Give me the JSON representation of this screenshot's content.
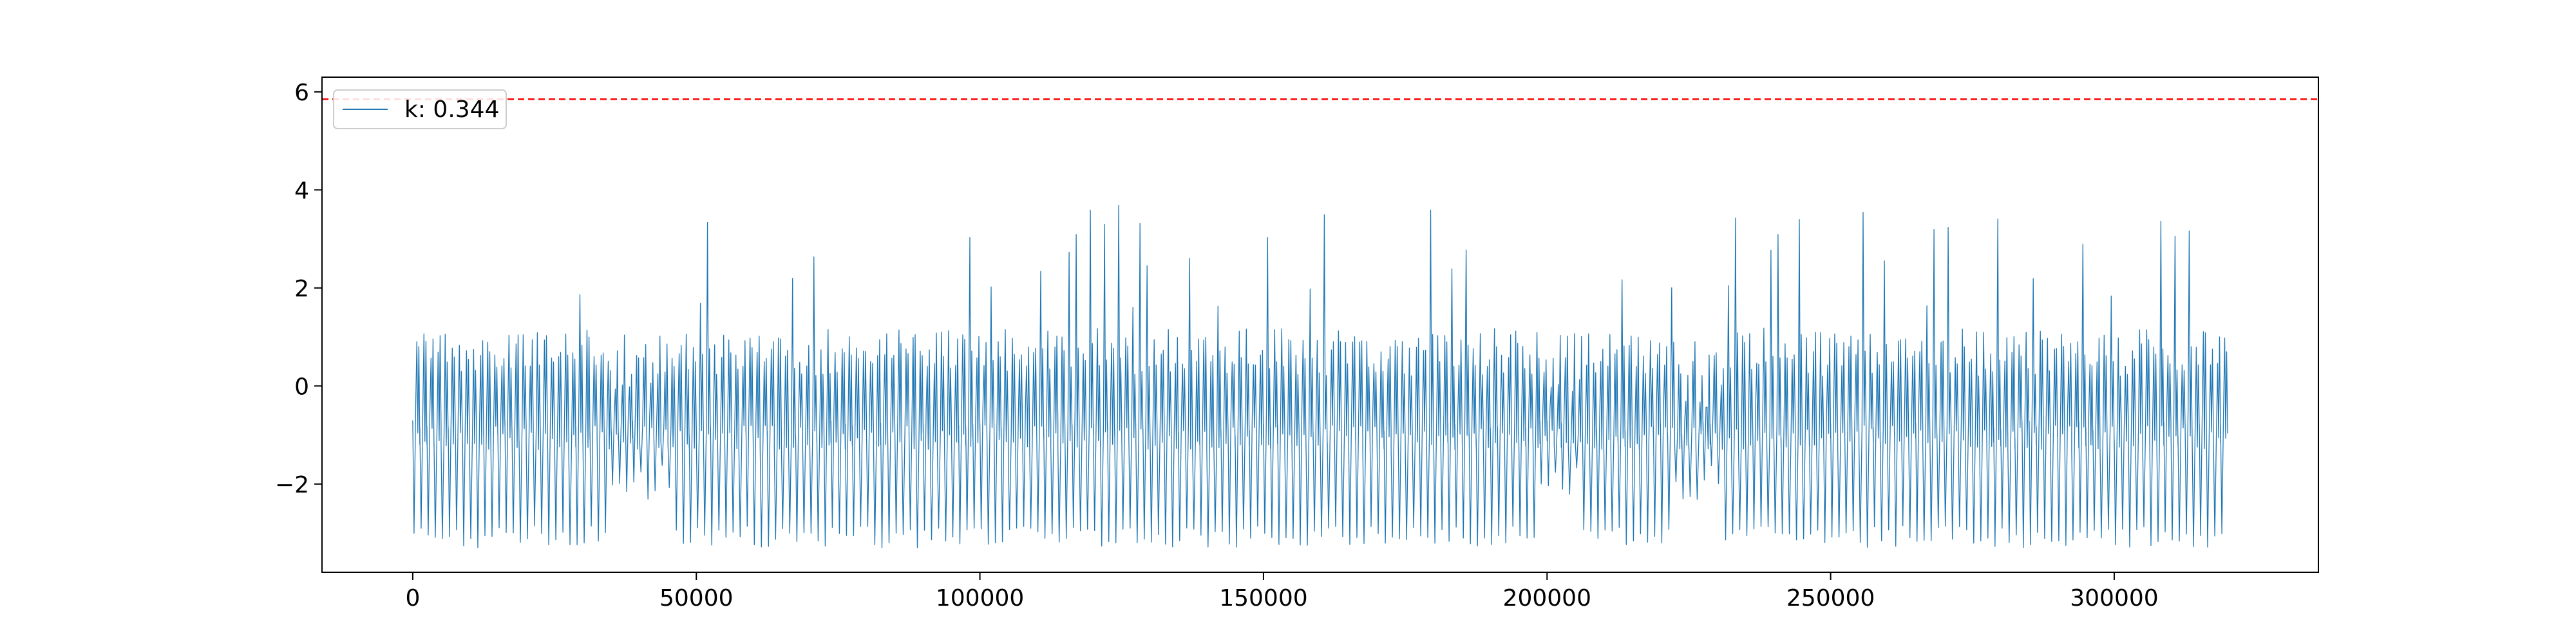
{
  "chart_data": {
    "type": "line",
    "title": "",
    "xlabel": "",
    "ylabel": "",
    "xlim": [
      -16000,
      336000
    ],
    "ylim": [
      -3.8,
      6.3
    ],
    "x_ticks": [
      0,
      50000,
      100000,
      150000,
      200000,
      250000,
      300000
    ],
    "x_tick_labels": [
      "0",
      "50000",
      "100000",
      "150000",
      "200000",
      "250000",
      "300000"
    ],
    "y_ticks": [
      -2,
      0,
      2,
      4,
      6
    ],
    "y_tick_labels": [
      "−2",
      "0",
      "2",
      "4",
      "6"
    ],
    "grid": false,
    "legend_position": "top-left",
    "series": [
      {
        "name": "k: 0.344",
        "color": "#1f77b4",
        "x_range": [
          0,
          320000
        ],
        "cycle_period": 1250,
        "typical_min": -3.3,
        "typical_upper": 1.2,
        "peak_max": 3.75,
        "baseline_low_band": -1.0,
        "irregular_segments": [
          [
            35000,
            45000
          ],
          [
            198000,
            205000
          ],
          [
            222000,
            230000
          ]
        ]
      }
    ],
    "threshold_line": {
      "y": 5.85,
      "color": "#ff0000",
      "style": "dashed"
    }
  }
}
